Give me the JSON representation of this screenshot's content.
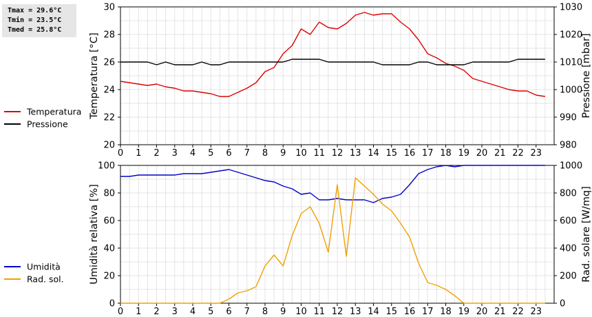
{
  "stats": {
    "tmax": "Tmax = 29.6°C",
    "tmin": "Tmin = 23.5°C",
    "tmed": "Tmed = 25.8°C"
  },
  "colors": {
    "temperature": "#dd0000",
    "pressure": "#000000",
    "humidity": "#0000cc",
    "solar": "#f0a000",
    "grid": "#c8c8c8"
  },
  "chart_data": [
    {
      "type": "line",
      "xlabel": "",
      "ylabel": "Temperatura [°C]",
      "y2label": "Pressione [mbar]",
      "xlim": [
        0,
        24
      ],
      "ylim": [
        20,
        30
      ],
      "y2lim": [
        980,
        1030
      ],
      "x_ticks": [
        "0",
        "1",
        "2",
        "3",
        "4",
        "5",
        "6",
        "7",
        "8",
        "9",
        "10",
        "11",
        "12",
        "13",
        "14",
        "15",
        "16",
        "17",
        "18",
        "19",
        "20",
        "21",
        "22",
        "23"
      ],
      "y_ticks": [
        "20",
        "22",
        "24",
        "26",
        "28",
        "30"
      ],
      "y2_ticks": [
        "980",
        "990",
        "1000",
        "1010",
        "1020",
        "1030"
      ],
      "grid": true,
      "series": [
        {
          "name": "Temperatura",
          "axis": "left",
          "x": [
            0,
            0.5,
            1,
            1.5,
            2,
            2.5,
            3,
            3.5,
            4,
            4.5,
            5,
            5.5,
            6,
            6.5,
            7,
            7.5,
            8,
            8.5,
            9,
            9.5,
            10,
            10.5,
            11,
            11.5,
            12,
            12.5,
            13,
            13.5,
            14,
            14.5,
            15,
            15.5,
            16,
            16.5,
            17,
            17.5,
            18,
            18.5,
            19,
            19.5,
            20,
            20.5,
            21,
            21.5,
            22,
            22.5,
            23,
            23.5
          ],
          "values": [
            24.6,
            24.5,
            24.4,
            24.3,
            24.4,
            24.2,
            24.1,
            23.9,
            23.9,
            23.8,
            23.7,
            23.5,
            23.5,
            23.8,
            24.1,
            24.5,
            25.3,
            25.6,
            26.6,
            27.2,
            28.4,
            28.0,
            28.9,
            28.5,
            28.4,
            28.8,
            29.4,
            29.6,
            29.4,
            29.5,
            29.5,
            28.9,
            28.4,
            27.6,
            26.6,
            26.3,
            25.9,
            25.7,
            25.4,
            24.8,
            24.6,
            24.4,
            24.2,
            24.0,
            23.9,
            23.9,
            23.6,
            23.5
          ]
        },
        {
          "name": "Pressione",
          "axis": "right",
          "x": [
            0,
            0.5,
            1,
            1.5,
            2,
            2.5,
            3,
            3.5,
            4,
            4.5,
            5,
            5.5,
            6,
            6.5,
            7,
            7.5,
            8,
            8.5,
            9,
            9.5,
            10,
            10.5,
            11,
            11.5,
            12,
            12.5,
            13,
            13.5,
            14,
            14.5,
            15,
            15.5,
            16,
            16.5,
            17,
            17.5,
            18,
            18.5,
            19,
            19.5,
            20,
            20.5,
            21,
            21.5,
            22,
            22.5,
            23,
            23.5
          ],
          "values": [
            1010,
            1010,
            1010,
            1010,
            1009,
            1010,
            1009,
            1009,
            1009,
            1010,
            1009,
            1009,
            1010,
            1010,
            1010,
            1010,
            1010,
            1010,
            1010,
            1011,
            1011,
            1011,
            1011,
            1010,
            1010,
            1010,
            1010,
            1010,
            1010,
            1009,
            1009,
            1009,
            1009,
            1010,
            1010,
            1009,
            1009,
            1009,
            1009,
            1010,
            1010,
            1010,
            1010,
            1010,
            1011,
            1011,
            1011,
            1011
          ]
        }
      ]
    },
    {
      "type": "line",
      "xlabel": "",
      "ylabel": "Umidità relativa [%]",
      "y2label": "Rad. solare [W/mq]",
      "xlim": [
        0,
        24
      ],
      "ylim": [
        0,
        100
      ],
      "y2lim": [
        0,
        1000
      ],
      "x_ticks": [
        "0",
        "1",
        "2",
        "3",
        "4",
        "5",
        "6",
        "7",
        "8",
        "9",
        "10",
        "11",
        "12",
        "13",
        "14",
        "15",
        "16",
        "17",
        "18",
        "19",
        "20",
        "21",
        "22",
        "23"
      ],
      "y_ticks": [
        "0",
        "20",
        "40",
        "60",
        "80",
        "100"
      ],
      "y2_ticks": [
        "0",
        "200",
        "400",
        "600",
        "800",
        "1000"
      ],
      "grid": true,
      "series": [
        {
          "name": "Umidità",
          "axis": "left",
          "x": [
            0,
            0.5,
            1,
            1.5,
            2,
            2.5,
            3,
            3.5,
            4,
            4.5,
            5,
            5.5,
            6,
            6.5,
            7,
            7.5,
            8,
            8.5,
            9,
            9.5,
            10,
            10.5,
            11,
            11.5,
            12,
            12.5,
            13,
            13.5,
            14,
            14.5,
            15,
            15.5,
            16,
            16.5,
            17,
            17.5,
            18,
            18.5,
            19,
            19.5,
            20,
            20.5,
            21,
            21.5,
            22,
            22.5,
            23,
            23.5
          ],
          "values": [
            92,
            92,
            93,
            93,
            93,
            93,
            93,
            94,
            94,
            94,
            95,
            96,
            97,
            95,
            93,
            91,
            89,
            88,
            85,
            83,
            79,
            80,
            75,
            75,
            76,
            75,
            75,
            75,
            73,
            76,
            77,
            79,
            86,
            94,
            97,
            99,
            100,
            99,
            100,
            100,
            100,
            100,
            100,
            100,
            100,
            100,
            100,
            100
          ]
        },
        {
          "name": "Rad. sol.",
          "axis": "right",
          "x": [
            0,
            0.5,
            1,
            1.5,
            2,
            2.5,
            3,
            3.5,
            4,
            4.5,
            5,
            5.5,
            6,
            6.5,
            7,
            7.5,
            8,
            8.5,
            9,
            9.5,
            10,
            10.5,
            11,
            11.5,
            12,
            12.5,
            13,
            13.5,
            14,
            14.5,
            15,
            15.5,
            16,
            16.5,
            17,
            17.5,
            18,
            18.5,
            19,
            19.5,
            20,
            20.5,
            21,
            21.5,
            22,
            22.5,
            23,
            23.5
          ],
          "values": [
            0,
            0,
            0,
            0,
            0,
            0,
            0,
            0,
            0,
            0,
            0,
            0,
            30,
            75,
            90,
            120,
            270,
            350,
            270,
            490,
            650,
            700,
            580,
            370,
            860,
            340,
            910,
            850,
            790,
            720,
            670,
            580,
            480,
            290,
            150,
            130,
            100,
            55,
            0,
            0,
            0,
            0,
            0,
            0,
            0,
            0,
            0,
            0
          ]
        }
      ]
    }
  ]
}
